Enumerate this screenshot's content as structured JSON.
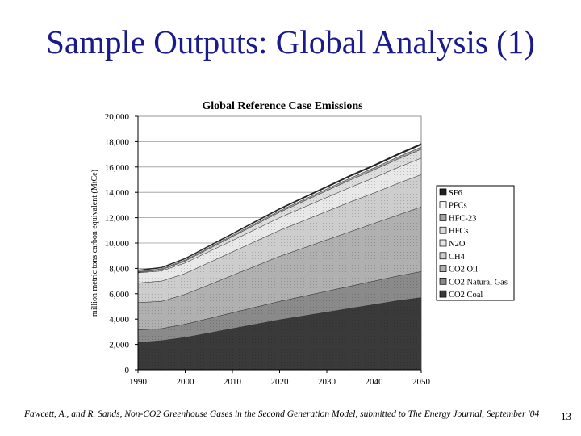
{
  "slide": {
    "title": "Sample Outputs: Global Analysis (1)",
    "citation": "Fawcett, A., and R. Sands, Non-CO2 Greenhouse Gases in the Second Generation Model, submitted to The Energy Journal, September '04",
    "page_number": "13"
  },
  "chart_data": {
    "type": "area",
    "stacked": true,
    "title": "Global Reference Case Emissions",
    "xlabel": "",
    "ylabel": "million metric tons carbon equivalent (MtCe)",
    "x": [
      1990,
      1995,
      2000,
      2005,
      2010,
      2015,
      2020,
      2025,
      2030,
      2035,
      2040,
      2045,
      2050
    ],
    "xticks": [
      1990,
      2000,
      2010,
      2020,
      2030,
      2040,
      2050
    ],
    "xlim": [
      1990,
      2050
    ],
    "ylim": [
      0,
      20000
    ],
    "yticks": [
      0,
      2000,
      4000,
      6000,
      8000,
      10000,
      12000,
      14000,
      16000,
      18000,
      20000
    ],
    "ytick_labels": [
      "0",
      "2,000",
      "4,000",
      "6,000",
      "8,000",
      "10,000",
      "12,000",
      "14,000",
      "16,000",
      "18,000",
      "20,000"
    ],
    "grid": true,
    "legend_position": "right",
    "series": [
      {
        "name": "CO2 Coal",
        "color": "#3a3a3a",
        "values": [
          2150,
          2300,
          2550,
          2900,
          3250,
          3600,
          3950,
          4250,
          4550,
          4850,
          5150,
          5450,
          5700
        ]
      },
      {
        "name": "CO2 Natural Gas",
        "color": "#8a8a8a",
        "values": [
          1000,
          950,
          1050,
          1150,
          1250,
          1350,
          1450,
          1550,
          1650,
          1750,
          1850,
          1950,
          2050
        ]
      },
      {
        "name": "CO2 Oil",
        "color": "#b0b0b0",
        "values": [
          2150,
          2150,
          2350,
          2650,
          2950,
          3250,
          3550,
          3800,
          4050,
          4300,
          4550,
          4800,
          5100
        ]
      },
      {
        "name": "CH4",
        "color": "#cdcdcd",
        "values": [
          1550,
          1600,
          1650,
          1750,
          1850,
          1950,
          2050,
          2150,
          2250,
          2350,
          2400,
          2500,
          2550
        ]
      },
      {
        "name": "N2O",
        "color": "#e8e8e8",
        "values": [
          800,
          800,
          830,
          870,
          900,
          950,
          1000,
          1050,
          1100,
          1150,
          1200,
          1250,
          1300
        ]
      },
      {
        "name": "HFCs",
        "color": "#dcdcdc",
        "values": [
          40,
          90,
          150,
          220,
          300,
          370,
          430,
          480,
          530,
          580,
          620,
          660,
          700
        ]
      },
      {
        "name": "HFC-23",
        "color": "#a5a5a5",
        "values": [
          60,
          70,
          80,
          90,
          100,
          110,
          120,
          130,
          140,
          150,
          160,
          170,
          180
        ]
      },
      {
        "name": "PFCs",
        "color": "#f8f8f8",
        "values": [
          70,
          75,
          80,
          85,
          90,
          95,
          100,
          110,
          120,
          130,
          140,
          150,
          160
        ]
      },
      {
        "name": "SF6",
        "color": "#202020",
        "values": [
          60,
          65,
          70,
          75,
          80,
          85,
          90,
          95,
          100,
          105,
          110,
          115,
          120
        ]
      }
    ]
  }
}
